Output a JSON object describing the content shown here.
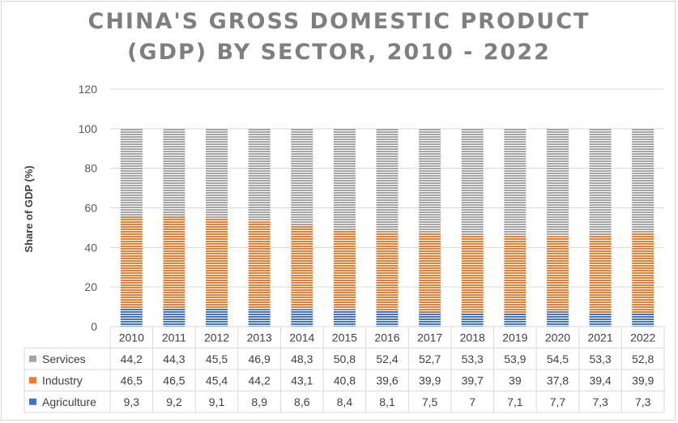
{
  "title_line1": "CHINA'S GROSS DOMESTIC PRODUCT",
  "title_line2": "(GDP) BY SECTOR, 2010 - 2022",
  "colors": {
    "services": "#a5a5a5",
    "industry": "#ed7d31",
    "agriculture": "#4472c4",
    "grid": "#d9d9d9",
    "title": "#7f7f7f"
  },
  "chart_data": {
    "type": "bar",
    "stacked": true,
    "title": "CHINA'S GROSS DOMESTIC PRODUCT (GDP) BY SECTOR, 2010 - 2022",
    "ylabel": "Share of GDP (%)",
    "xlabel": "",
    "ylim": [
      0,
      120
    ],
    "yticks": [
      "0",
      "20",
      "40",
      "60",
      "80",
      "100",
      "120"
    ],
    "grid": true,
    "legend": "data-table",
    "categories": [
      "2010",
      "2011",
      "2012",
      "2013",
      "2014",
      "2015",
      "2016",
      "2017",
      "2018",
      "2019",
      "2020",
      "2021",
      "2022"
    ],
    "series": [
      {
        "name": "Services",
        "values": [
          44.2,
          44.3,
          45.5,
          46.9,
          48.3,
          50.8,
          52.4,
          52.7,
          53.3,
          53.9,
          54.5,
          53.3,
          52.8
        ],
        "labels": [
          "44,2",
          "44,3",
          "45,5",
          "46,9",
          "48,3",
          "50,8",
          "52,4",
          "52,7",
          "53,3",
          "53,9",
          "54,5",
          "53,3",
          "52,8"
        ]
      },
      {
        "name": "Industry",
        "values": [
          46.5,
          46.5,
          45.4,
          44.2,
          43.1,
          40.8,
          39.6,
          39.9,
          39.7,
          39,
          37.8,
          39.4,
          39.9
        ],
        "labels": [
          "46,5",
          "46,5",
          "45,4",
          "44,2",
          "43,1",
          "40,8",
          "39,6",
          "39,9",
          "39,7",
          "39",
          "37,8",
          "39,4",
          "39,9"
        ]
      },
      {
        "name": "Agriculture",
        "values": [
          9.3,
          9.2,
          9.1,
          8.9,
          8.6,
          8.4,
          8.1,
          7.5,
          7,
          7.1,
          7.7,
          7.3,
          7.3
        ],
        "labels": [
          "9,3",
          "9,2",
          "9,1",
          "8,9",
          "8,6",
          "8,4",
          "8,1",
          "7,5",
          "7",
          "7,1",
          "7,7",
          "7,3",
          "7,3"
        ]
      }
    ]
  }
}
